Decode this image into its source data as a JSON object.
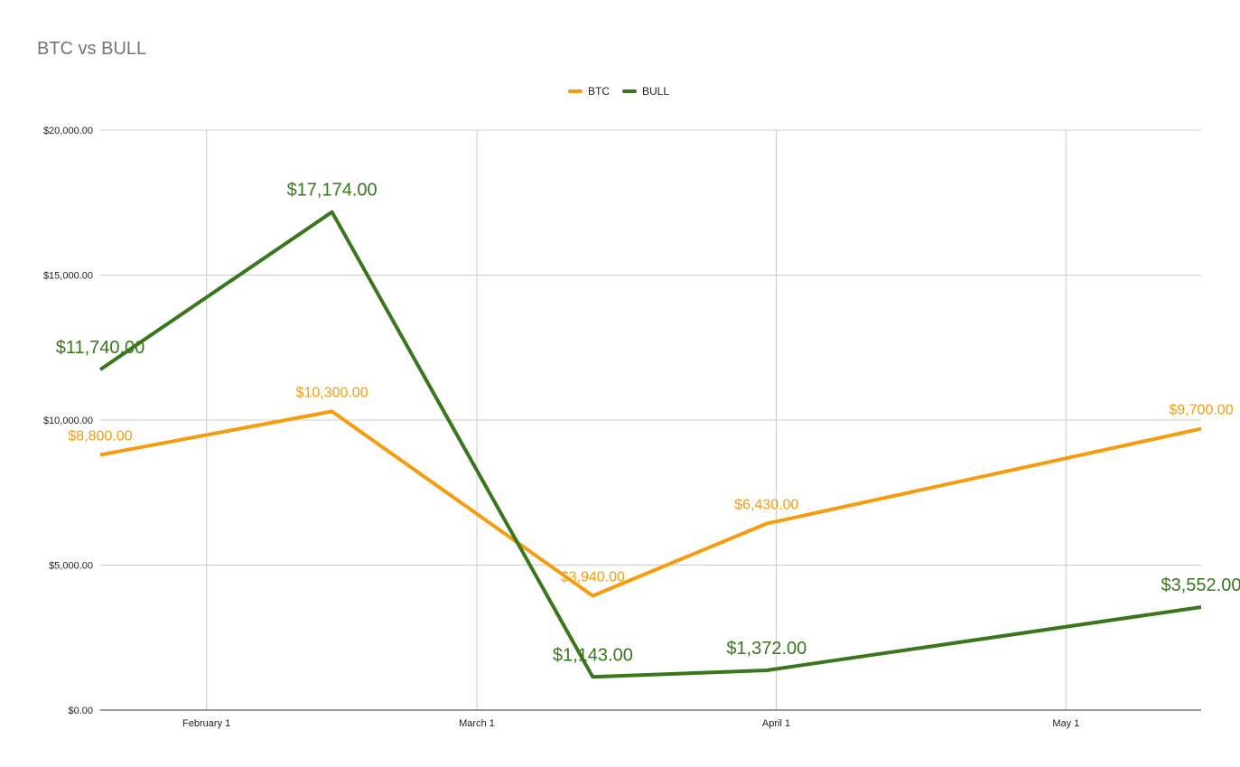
{
  "chart_data": {
    "type": "line",
    "title": "BTC vs BULL",
    "xlabel": "",
    "ylabel": "",
    "x_ticks": [
      "February 1",
      "March 1",
      "April 1",
      "May 1"
    ],
    "x_range": [
      "2018-01-21",
      "2018-05-15"
    ],
    "ylim": [
      0,
      20000
    ],
    "y_ticks": [
      {
        "value": 0,
        "label": "$0.00"
      },
      {
        "value": 5000,
        "label": "$5,000.00"
      },
      {
        "value": 10000,
        "label": "$10,000.00"
      },
      {
        "value": 15000,
        "label": "$15,000.00"
      },
      {
        "value": 20000,
        "label": "$20,000.00"
      }
    ],
    "grid": true,
    "legend_position": "top-center",
    "series": [
      {
        "name": "BTC",
        "color": "#f59d0e",
        "points": [
          {
            "x": "2018-01-21",
            "y": 8800,
            "label": "$8,800.00"
          },
          {
            "x": "2018-02-14",
            "y": 10300,
            "label": "$10,300.00"
          },
          {
            "x": "2018-03-13",
            "y": 3940,
            "label": "$3,940.00"
          },
          {
            "x": "2018-03-31",
            "y": 6430,
            "label": "$6,430.00"
          },
          {
            "x": "2018-05-15",
            "y": 9700,
            "label": "$9,700.00"
          }
        ]
      },
      {
        "name": "BULL",
        "color": "#3a761d",
        "points": [
          {
            "x": "2018-01-21",
            "y": 11740,
            "label": "$11,740.00"
          },
          {
            "x": "2018-02-14",
            "y": 17174,
            "label": "$17,174.00"
          },
          {
            "x": "2018-03-13",
            "y": 1143,
            "label": "$1,143.00"
          },
          {
            "x": "2018-03-31",
            "y": 1372,
            "label": "$1,372.00"
          },
          {
            "x": "2018-05-15",
            "y": 3552,
            "label": "$3,552.00"
          }
        ]
      }
    ]
  }
}
